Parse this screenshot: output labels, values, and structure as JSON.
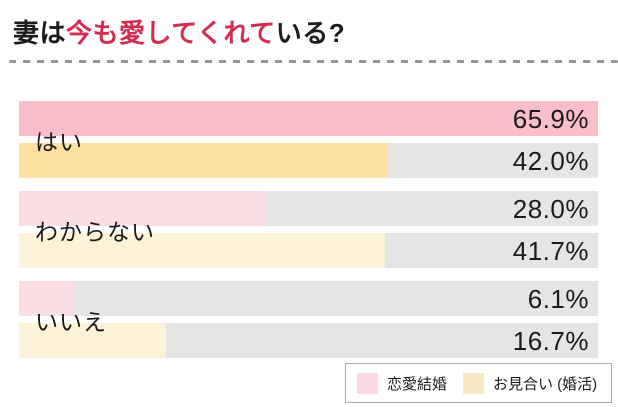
{
  "title": {
    "prefix": "妻は",
    "highlight": "今も愛してくれて",
    "suffix": "いる?"
  },
  "colors": {
    "title_highlight": "#d42b51",
    "pink_emphasis": "#f9bec9",
    "yellow_emphasis": "#fce1a1",
    "pink_light": "#fbdee4",
    "yellow_light": "#fcf2d8",
    "track_gray": "#e5e5e5",
    "legend_pink": "#f9d8df",
    "legend_yellow": "#f9e8c4"
  },
  "chart_data": {
    "type": "bar",
    "orientation": "horizontal",
    "title": "妻は今も愛してくれている?",
    "categories": [
      "はい",
      "わからない",
      "いいえ"
    ],
    "series": [
      {
        "name": "恋愛結婚",
        "values": [
          65.9,
          28.0,
          6.1
        ]
      },
      {
        "name": "お見合い (婚活)",
        "values": [
          42.0,
          41.7,
          16.7
        ]
      }
    ],
    "unit": "%",
    "xlim": [
      0,
      65.9
    ],
    "value_labels": true,
    "grid": false,
    "legend_position": "bottom-right",
    "groups": [
      {
        "label": "はい",
        "bars": [
          {
            "series": "恋愛結婚",
            "series_index": 0,
            "value": 65.9,
            "display": "65.9%",
            "emphasis": true
          },
          {
            "series": "お見合い (婚活)",
            "series_index": 1,
            "value": 42.0,
            "display": "42.0%",
            "emphasis": true
          }
        ]
      },
      {
        "label": "わからない",
        "bars": [
          {
            "series": "恋愛結婚",
            "series_index": 0,
            "value": 28.0,
            "display": "28.0%",
            "emphasis": false
          },
          {
            "series": "お見合い (婚活)",
            "series_index": 1,
            "value": 41.7,
            "display": "41.7%",
            "emphasis": false
          }
        ]
      },
      {
        "label": "いいえ",
        "bars": [
          {
            "series": "恋愛結婚",
            "series_index": 0,
            "value": 6.1,
            "display": "6.1%",
            "emphasis": false
          },
          {
            "series": "お見合い (婚活)",
            "series_index": 1,
            "value": 16.7,
            "display": "16.7%",
            "emphasis": false
          }
        ]
      }
    ],
    "legend": [
      {
        "label": "恋愛結婚",
        "swatch": "pink"
      },
      {
        "label": "お見合い (婚活)",
        "swatch": "yellow"
      }
    ]
  }
}
